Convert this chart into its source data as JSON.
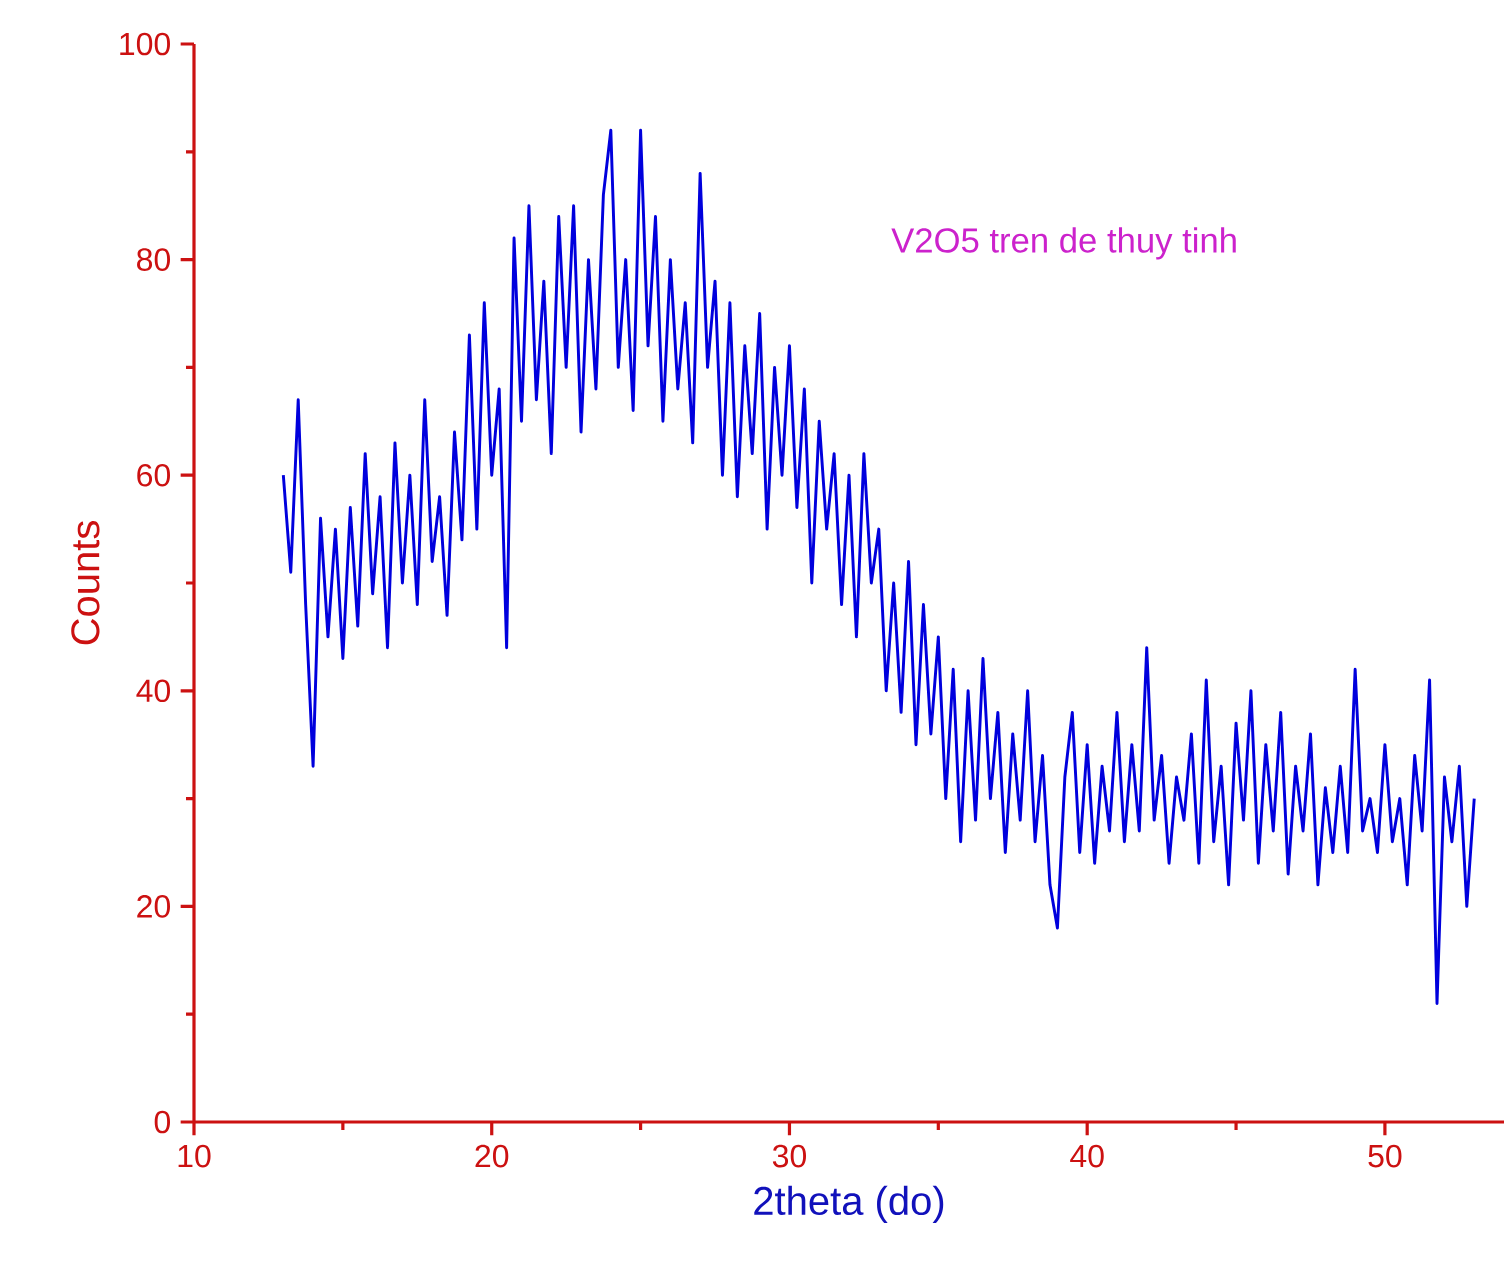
{
  "chart_data": {
    "type": "line",
    "xlabel": "2theta (do)",
    "ylabel": "Counts",
    "xlim": [
      10,
      54
    ],
    "ylim": [
      0,
      100
    ],
    "xticks": [
      10,
      20,
      30,
      40,
      50
    ],
    "yticks": [
      0,
      20,
      40,
      60,
      80,
      100
    ],
    "x": [
      13,
      13.25,
      13.5,
      13.75,
      14,
      14.25,
      14.5,
      14.75,
      15,
      15.25,
      15.5,
      15.75,
      16,
      16.25,
      16.5,
      16.75,
      17,
      17.25,
      17.5,
      17.75,
      18,
      18.25,
      18.5,
      18.75,
      19,
      19.25,
      19.5,
      19.75,
      20,
      20.25,
      20.5,
      20.75,
      21,
      21.25,
      21.5,
      21.75,
      22,
      22.25,
      22.5,
      22.75,
      23,
      23.25,
      23.5,
      23.75,
      24,
      24.25,
      24.5,
      24.75,
      25,
      25.25,
      25.5,
      25.75,
      26,
      26.25,
      26.5,
      26.75,
      27,
      27.25,
      27.5,
      27.75,
      28,
      28.25,
      28.5,
      28.75,
      29,
      29.25,
      29.5,
      29.75,
      30,
      30.25,
      30.5,
      30.75,
      31,
      31.25,
      31.5,
      31.75,
      32,
      32.25,
      32.5,
      32.75,
      33,
      33.25,
      33.5,
      33.75,
      34,
      34.25,
      34.5,
      34.75,
      35,
      35.25,
      35.5,
      35.75,
      36,
      36.25,
      36.5,
      36.75,
      37,
      37.25,
      37.5,
      37.75,
      38,
      38.25,
      38.5,
      38.75,
      39,
      39.25,
      39.5,
      39.75,
      40,
      40.25,
      40.5,
      40.75,
      41,
      41.25,
      41.5,
      41.75,
      42,
      42.25,
      42.5,
      42.75,
      43,
      43.25,
      43.5,
      43.75,
      44,
      44.25,
      44.5,
      44.75,
      45,
      45.25,
      45.5,
      45.75,
      46,
      46.25,
      46.5,
      46.75,
      47,
      47.25,
      47.5,
      47.75,
      48,
      48.25,
      48.5,
      48.75,
      49,
      49.25,
      49.5,
      49.75,
      50,
      50.25,
      50.5,
      50.75,
      51,
      51.25,
      51.5,
      51.75,
      52,
      52.25,
      52.5,
      52.75,
      53
    ],
    "series": [
      {
        "name": "V2O5 tren de thuy tinh",
        "color": "#0000dd",
        "values": [
          60,
          51,
          67,
          48,
          33,
          56,
          45,
          55,
          43,
          57,
          46,
          62,
          49,
          58,
          44,
          63,
          50,
          60,
          48,
          67,
          52,
          58,
          47,
          64,
          54,
          73,
          55,
          76,
          60,
          68,
          44,
          82,
          65,
          85,
          67,
          78,
          62,
          84,
          70,
          85,
          64,
          80,
          68,
          86,
          92,
          70,
          80,
          66,
          92,
          72,
          84,
          65,
          80,
          68,
          76,
          63,
          88,
          70,
          78,
          60,
          76,
          58,
          72,
          62,
          75,
          55,
          70,
          60,
          72,
          57,
          68,
          50,
          65,
          55,
          62,
          48,
          60,
          45,
          62,
          50,
          55,
          40,
          50,
          38,
          52,
          35,
          48,
          36,
          45,
          30,
          42,
          26,
          40,
          28,
          43,
          30,
          38,
          25,
          36,
          28,
          40,
          26,
          34,
          22,
          18,
          32,
          38,
          25,
          35,
          24,
          33,
          27,
          38,
          26,
          35,
          27,
          44,
          28,
          34,
          24,
          32,
          28,
          36,
          24,
          41,
          26,
          33,
          22,
          37,
          28,
          40,
          24,
          35,
          27,
          38,
          23,
          33,
          27,
          36,
          22,
          31,
          25,
          33,
          25,
          42,
          27,
          30,
          25,
          35,
          26,
          30,
          22,
          34,
          27,
          41,
          11,
          32,
          26,
          33,
          20,
          30
        ]
      }
    ]
  }
}
